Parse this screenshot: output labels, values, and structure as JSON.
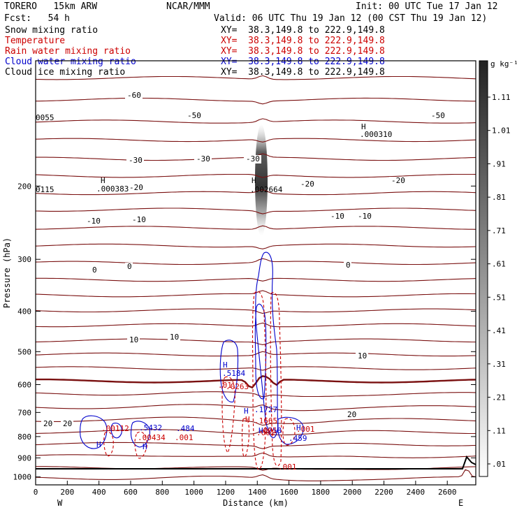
{
  "header": {
    "model": "TORERO   15km ARW",
    "org": "NCAR/MMM",
    "init": "Init: 00 UTC Tue 17 Jan 12",
    "fcst": "Fcst:   54 h",
    "valid": "Valid: 06 UTC Thu 19 Jan 12 (00 CST Thu 19 Jan 12)",
    "fields": [
      {
        "name": "Snow mixing ratio",
        "color": "#000000"
      },
      {
        "name": "Temperature",
        "color": "#cc0000"
      },
      {
        "name": "Rain water mixing ratio",
        "color": "#cc0000"
      },
      {
        "name": "Cloud water mixing ratio",
        "color": "#0000cc"
      },
      {
        "name": "Cloud ice mixing ratio",
        "color": "#000000"
      }
    ],
    "xy_label": "XY=",
    "xy_value": "38.3,149.8 to 222.9,149.8"
  },
  "chart_data": {
    "type": "cross-section",
    "xlabel": "Distance (km)",
    "ylabel": "Pressure (hPa)",
    "x_range": [
      0,
      2780
    ],
    "x_ticks": [
      "0",
      "200",
      "400",
      "600",
      "800",
      "1000",
      "1200",
      "1400",
      "1600",
      "1800",
      "2000",
      "2200",
      "2400",
      "2600"
    ],
    "y_range": [
      100,
      1045
    ],
    "y_log": true,
    "y_ticks": [
      "200",
      "300",
      "400",
      "500",
      "600",
      "700",
      "800",
      "900",
      "1000"
    ],
    "x_end_labels": {
      "left": "W",
      "right": "E"
    },
    "colorbar": {
      "unit": "g kg⁻¹",
      "ticks": [
        "1.11",
        "1.01",
        ".91",
        ".81",
        ".71",
        ".61",
        ".51",
        ".41",
        ".31",
        ".21",
        ".11",
        ".01"
      ]
    },
    "temperature_labels": [
      "-60",
      "-50",
      "-50",
      "-30",
      "-30",
      "-30",
      "-20",
      "-20",
      "-20",
      "-10",
      "-10",
      "-10",
      "-10",
      "0",
      "0",
      "0",
      "10",
      "10",
      "10",
      "20",
      "20",
      "20"
    ],
    "annotations": [
      {
        "text": "H",
        "color": "#000000"
      },
      {
        "text": ".000310",
        "color": "#000000"
      },
      {
        "text": "H",
        "color": "#000000"
      },
      {
        "text": ".000383",
        "color": "#000000"
      },
      {
        "text": "H",
        "color": "#000000"
      },
      {
        "text": ".002664",
        "color": "#000000"
      },
      {
        "text": "0055",
        "color": "#000000"
      },
      {
        "text": "0115",
        "color": "#000000"
      },
      {
        "text": "H",
        "color": "#0000cc"
      },
      {
        "text": ".5184",
        "color": "#0000cc"
      },
      {
        "text": ".01",
        "color": "#cc0000"
      },
      {
        "text": ".0263",
        "color": "#cc0000"
      },
      {
        "text": "H",
        "color": "#0000cc"
      },
      {
        "text": ".1727",
        "color": "#0000cc"
      },
      {
        "text": "H",
        "color": "#cc0000"
      },
      {
        "text": ".1665",
        "color": "#cc0000"
      },
      {
        "text": ".001",
        "color": "#cc0000"
      },
      {
        "text": ".001",
        "color": "#cc0000"
      },
      {
        "text": ".001",
        "color": "#cc0000"
      },
      {
        "text": "H",
        "color": "#0000cc"
      },
      {
        "text": ".459",
        "color": "#0000cc"
      },
      {
        "text": ".00112",
        "color": "#cc0000"
      },
      {
        "text": "H",
        "color": "#0000cc"
      },
      {
        "text": ".5432",
        "color": "#0000cc"
      },
      {
        "text": ".00434",
        "color": "#cc0000"
      },
      {
        "text": "H",
        "color": "#0000cc"
      },
      {
        "text": ".484",
        "color": "#0000cc"
      },
      {
        "text": ".001",
        "color": "#cc0000"
      },
      {
        "text": "H",
        "color": "#0000cc"
      },
      {
        "text": ".0758",
        "color": "#0000cc"
      },
      {
        "text": ".001",
        "color": "#cc0000"
      }
    ]
  }
}
